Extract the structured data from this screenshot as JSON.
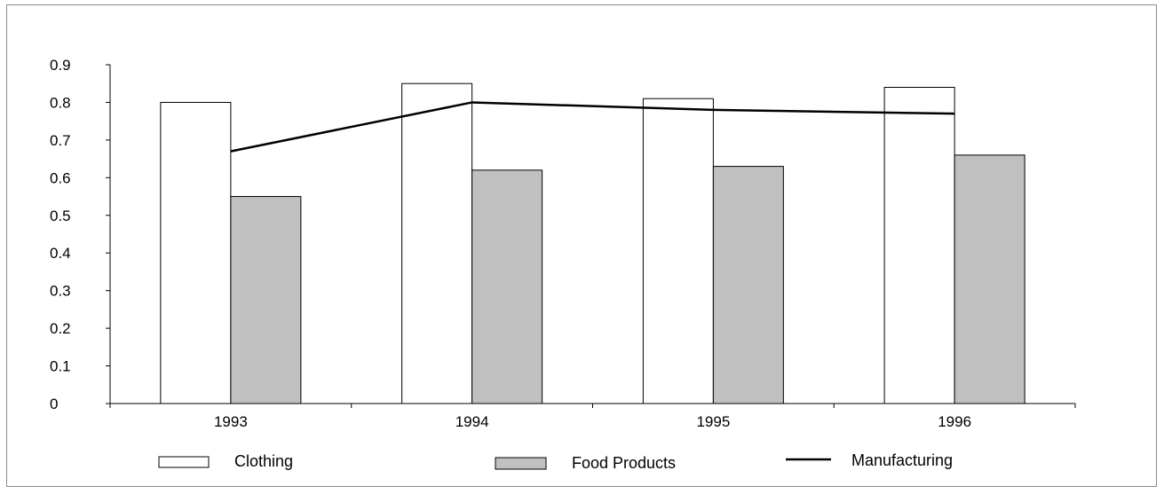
{
  "chart_data": {
    "type": "bar",
    "categories": [
      "1993",
      "1994",
      "1995",
      "1996"
    ],
    "series": [
      {
        "name": "Clothing",
        "kind": "bar",
        "values": [
          0.8,
          0.85,
          0.81,
          0.84
        ],
        "fill": "#ffffff",
        "stroke": "#000000"
      },
      {
        "name": "Food Products",
        "kind": "bar",
        "values": [
          0.55,
          0.62,
          0.63,
          0.66
        ],
        "fill": "#c0c0c0",
        "stroke": "#000000"
      },
      {
        "name": "Manufacturing",
        "kind": "line",
        "values": [
          0.67,
          0.8,
          0.78,
          0.77
        ],
        "stroke": "#000000"
      }
    ],
    "ylim": [
      0,
      0.9
    ],
    "yticks": [
      "0",
      "0.1",
      "0.2",
      "0.3",
      "0.4",
      "0.5",
      "0.6",
      "0.7",
      "0.8",
      "0.9"
    ],
    "title": "",
    "xlabel": "",
    "ylabel": "",
    "grid": false,
    "legend_position": "bottom"
  }
}
